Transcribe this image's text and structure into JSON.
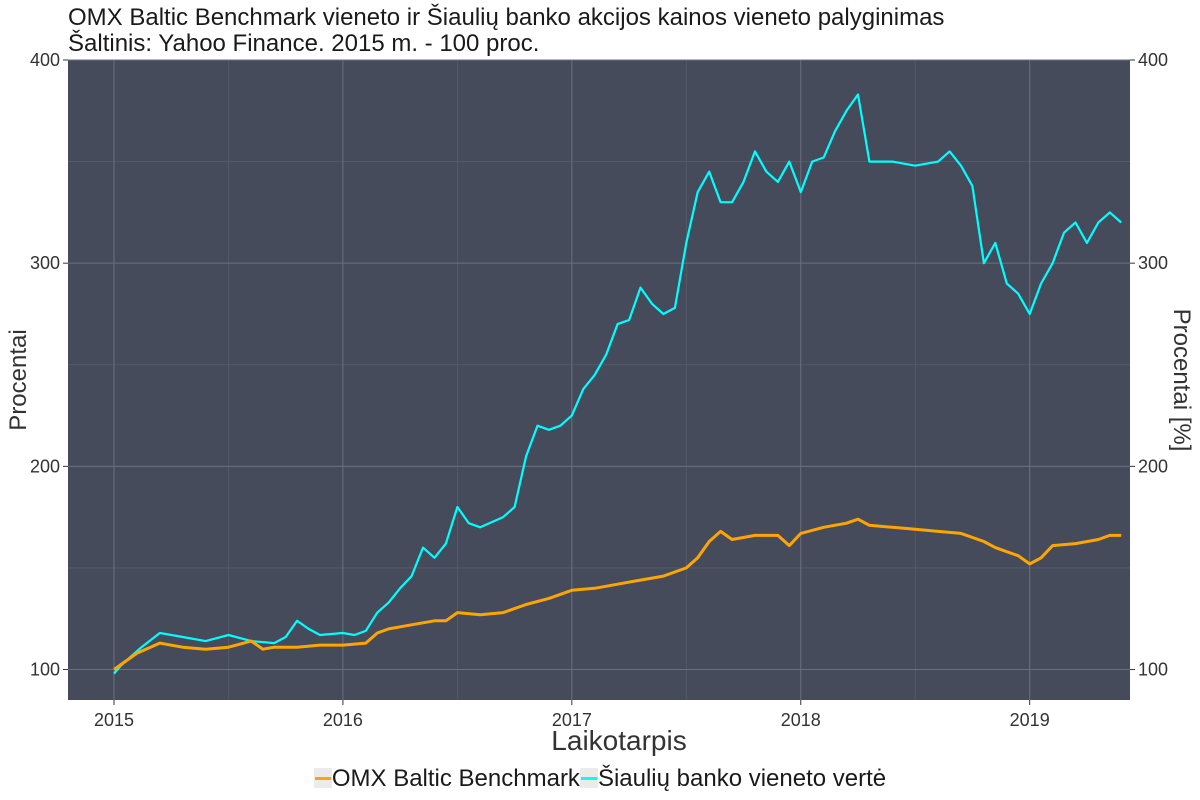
{
  "chart_data": {
    "type": "line",
    "title": "OMX Baltic Benchmark vieneto ir Šiaulių banko akcijos kainos vieneto palyginimas",
    "subtitle": "Šaltinis: Yahoo Finance. 2015 m. - 100 proc.",
    "xlabel": "Laikotarpis",
    "ylabel": "Procentai",
    "ylabel_right": "Procentai [%]",
    "xlim": [
      2015.0,
      2019.5
    ],
    "ylim": [
      85,
      400
    ],
    "x_ticks": [
      2015,
      2016,
      2017,
      2018,
      2019
    ],
    "x_tick_labels": [
      "2015",
      "2016",
      "2017",
      "2018",
      "2019"
    ],
    "y_ticks": [
      100,
      200,
      300,
      400
    ],
    "y_tick_labels": [
      "100",
      "200",
      "300",
      "400"
    ],
    "grid": true,
    "panel_background": "#454b5b",
    "legend_position": "bottom",
    "series": [
      {
        "name": "OMX Baltic Benchmark",
        "color": "#ffa500",
        "x": [
          2015.0,
          2015.05,
          2015.1,
          2015.2,
          2015.3,
          2015.4,
          2015.5,
          2015.6,
          2015.65,
          2015.7,
          2015.8,
          2015.9,
          2016.0,
          2016.1,
          2016.15,
          2016.2,
          2016.3,
          2016.4,
          2016.45,
          2016.5,
          2016.6,
          2016.7,
          2016.8,
          2016.9,
          2017.0,
          2017.1,
          2017.2,
          2017.3,
          2017.4,
          2017.5,
          2017.55,
          2017.6,
          2017.65,
          2017.7,
          2017.8,
          2017.9,
          2017.95,
          2018.0,
          2018.1,
          2018.2,
          2018.25,
          2018.3,
          2018.4,
          2018.5,
          2018.6,
          2018.7,
          2018.8,
          2018.85,
          2018.9,
          2018.95,
          2019.0,
          2019.05,
          2019.1,
          2019.2,
          2019.3,
          2019.35,
          2019.4
        ],
        "values": [
          100,
          104,
          108,
          113,
          111,
          110,
          111,
          114,
          110,
          111,
          111,
          112,
          112,
          113,
          118,
          120,
          122,
          124,
          124,
          128,
          127,
          128,
          132,
          135,
          139,
          140,
          142,
          144,
          146,
          150,
          155,
          163,
          168,
          164,
          166,
          166,
          161,
          167,
          170,
          172,
          174,
          171,
          170,
          169,
          168,
          167,
          163,
          160,
          158,
          156,
          152,
          155,
          161,
          162,
          164,
          166,
          166
        ]
      },
      {
        "name": "Šiaulių banko vieneto vertė",
        "color": "#00ffff",
        "x": [
          2015.0,
          2015.03,
          2015.07,
          2015.12,
          2015.2,
          2015.3,
          2015.4,
          2015.5,
          2015.6,
          2015.7,
          2015.75,
          2015.8,
          2015.85,
          2015.9,
          2016.0,
          2016.05,
          2016.1,
          2016.15,
          2016.2,
          2016.25,
          2016.3,
          2016.35,
          2016.4,
          2016.45,
          2016.5,
          2016.55,
          2016.6,
          2016.7,
          2016.75,
          2016.8,
          2016.85,
          2016.9,
          2016.95,
          2017.0,
          2017.05,
          2017.1,
          2017.15,
          2017.2,
          2017.25,
          2017.3,
          2017.35,
          2017.4,
          2017.45,
          2017.5,
          2017.55,
          2017.6,
          2017.65,
          2017.7,
          2017.75,
          2017.8,
          2017.85,
          2017.9,
          2017.95,
          2018.0,
          2018.05,
          2018.1,
          2018.15,
          2018.2,
          2018.25,
          2018.3,
          2018.35,
          2018.4,
          2018.5,
          2018.6,
          2018.65,
          2018.7,
          2018.75,
          2018.8,
          2018.85,
          2018.9,
          2018.95,
          2019.0,
          2019.05,
          2019.1,
          2019.15,
          2019.2,
          2019.25,
          2019.3,
          2019.35,
          2019.4
        ],
        "values": [
          98,
          102,
          106,
          111,
          118,
          116,
          114,
          117,
          114,
          113,
          116,
          124,
          120,
          117,
          118,
          117,
          119,
          128,
          133,
          140,
          146,
          160,
          155,
          162,
          180,
          172,
          170,
          175,
          180,
          205,
          220,
          218,
          220,
          225,
          238,
          245,
          255,
          270,
          272,
          288,
          280,
          275,
          278,
          310,
          335,
          345,
          330,
          330,
          340,
          355,
          345,
          340,
          350,
          335,
          350,
          352,
          365,
          375,
          383,
          350,
          350,
          350,
          348,
          350,
          355,
          348,
          338,
          300,
          310,
          290,
          285,
          275,
          290,
          300,
          315,
          320,
          310,
          320,
          325,
          320
        ]
      }
    ]
  }
}
